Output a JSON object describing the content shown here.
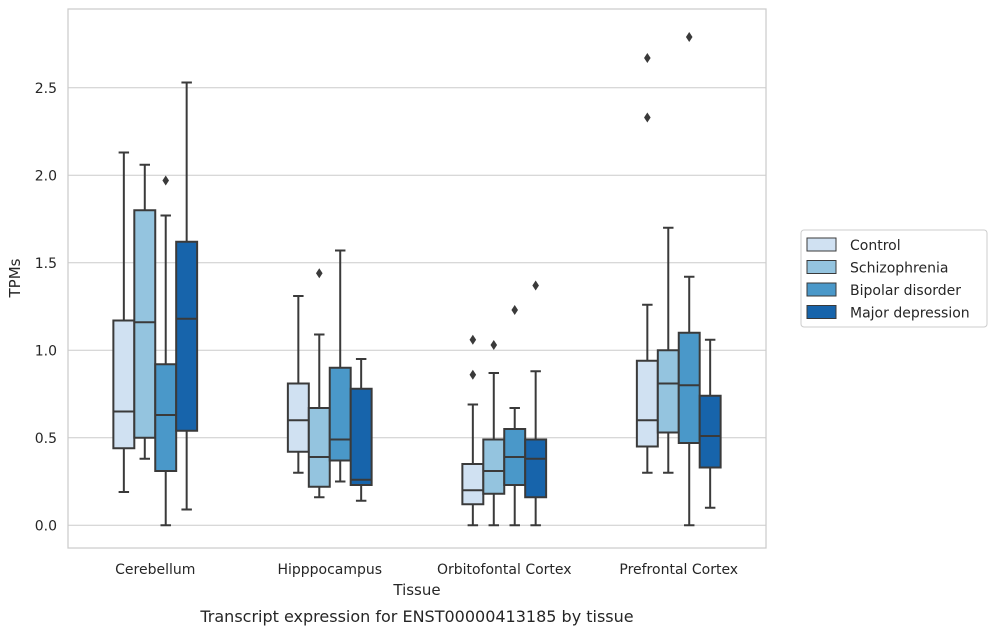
{
  "chart_data": {
    "type": "box",
    "xlabel": "Tissue",
    "ylabel": "TPMs",
    "caption": "Transcript expression for ENST00000413185 by tissue",
    "ylim": [
      -0.13,
      2.95
    ],
    "yticks": [
      "0.0",
      "0.5",
      "1.0",
      "1.5",
      "2.0",
      "2.5"
    ],
    "grid": "horizontal",
    "legend_position": "right",
    "categories": [
      "Cerebellum",
      "Hipppocampus",
      "Orbitofontal Cortex",
      "Prefrontal Cortex"
    ],
    "series": [
      {
        "name": "Control",
        "color": "#d0e1f2",
        "boxes": [
          {
            "whislo": 0.19,
            "q1": 0.44,
            "med": 0.65,
            "q3": 1.17,
            "whishi": 2.13,
            "fliers": []
          },
          {
            "whislo": 0.3,
            "q1": 0.42,
            "med": 0.6,
            "q3": 0.81,
            "whishi": 1.31,
            "fliers": []
          },
          {
            "whislo": 0.0,
            "q1": 0.12,
            "med": 0.2,
            "q3": 0.35,
            "whishi": 0.69,
            "fliers": [
              0.86,
              1.06
            ]
          },
          {
            "whislo": 0.3,
            "q1": 0.45,
            "med": 0.6,
            "q3": 0.94,
            "whishi": 1.26,
            "fliers": [
              2.33,
              2.67
            ]
          }
        ]
      },
      {
        "name": "Schizophrenia",
        "color": "#94c4df",
        "boxes": [
          {
            "whislo": 0.38,
            "q1": 0.5,
            "med": 1.16,
            "q3": 1.8,
            "whishi": 2.06,
            "fliers": []
          },
          {
            "whislo": 0.16,
            "q1": 0.22,
            "med": 0.39,
            "q3": 0.67,
            "whishi": 1.09,
            "fliers": [
              1.44
            ]
          },
          {
            "whislo": 0.0,
            "q1": 0.18,
            "med": 0.31,
            "q3": 0.49,
            "whishi": 0.87,
            "fliers": [
              1.03
            ]
          },
          {
            "whislo": 0.3,
            "q1": 0.53,
            "med": 0.81,
            "q3": 1.0,
            "whishi": 1.7,
            "fliers": []
          }
        ]
      },
      {
        "name": "Bipolar disorder",
        "color": "#4a98c9",
        "boxes": [
          {
            "whislo": 0.0,
            "q1": 0.31,
            "med": 0.63,
            "q3": 0.92,
            "whishi": 1.77,
            "fliers": [
              1.97
            ]
          },
          {
            "whislo": 0.25,
            "q1": 0.37,
            "med": 0.49,
            "q3": 0.9,
            "whishi": 1.57,
            "fliers": []
          },
          {
            "whislo": 0.0,
            "q1": 0.23,
            "med": 0.39,
            "q3": 0.55,
            "whishi": 0.67,
            "fliers": [
              1.23
            ]
          },
          {
            "whislo": 0.0,
            "q1": 0.47,
            "med": 0.8,
            "q3": 1.1,
            "whishi": 1.42,
            "fliers": [
              2.79
            ]
          }
        ]
      },
      {
        "name": "Major depression",
        "color": "#1764ab",
        "boxes": [
          {
            "whislo": 0.09,
            "q1": 0.54,
            "med": 1.18,
            "q3": 1.62,
            "whishi": 2.53,
            "fliers": []
          },
          {
            "whislo": 0.14,
            "q1": 0.23,
            "med": 0.26,
            "q3": 0.78,
            "whishi": 0.95,
            "fliers": []
          },
          {
            "whislo": 0.0,
            "q1": 0.16,
            "med": 0.38,
            "q3": 0.49,
            "whishi": 0.88,
            "fliers": [
              1.37
            ]
          },
          {
            "whislo": 0.1,
            "q1": 0.33,
            "med": 0.51,
            "q3": 0.74,
            "whishi": 1.06,
            "fliers": []
          }
        ]
      }
    ]
  }
}
